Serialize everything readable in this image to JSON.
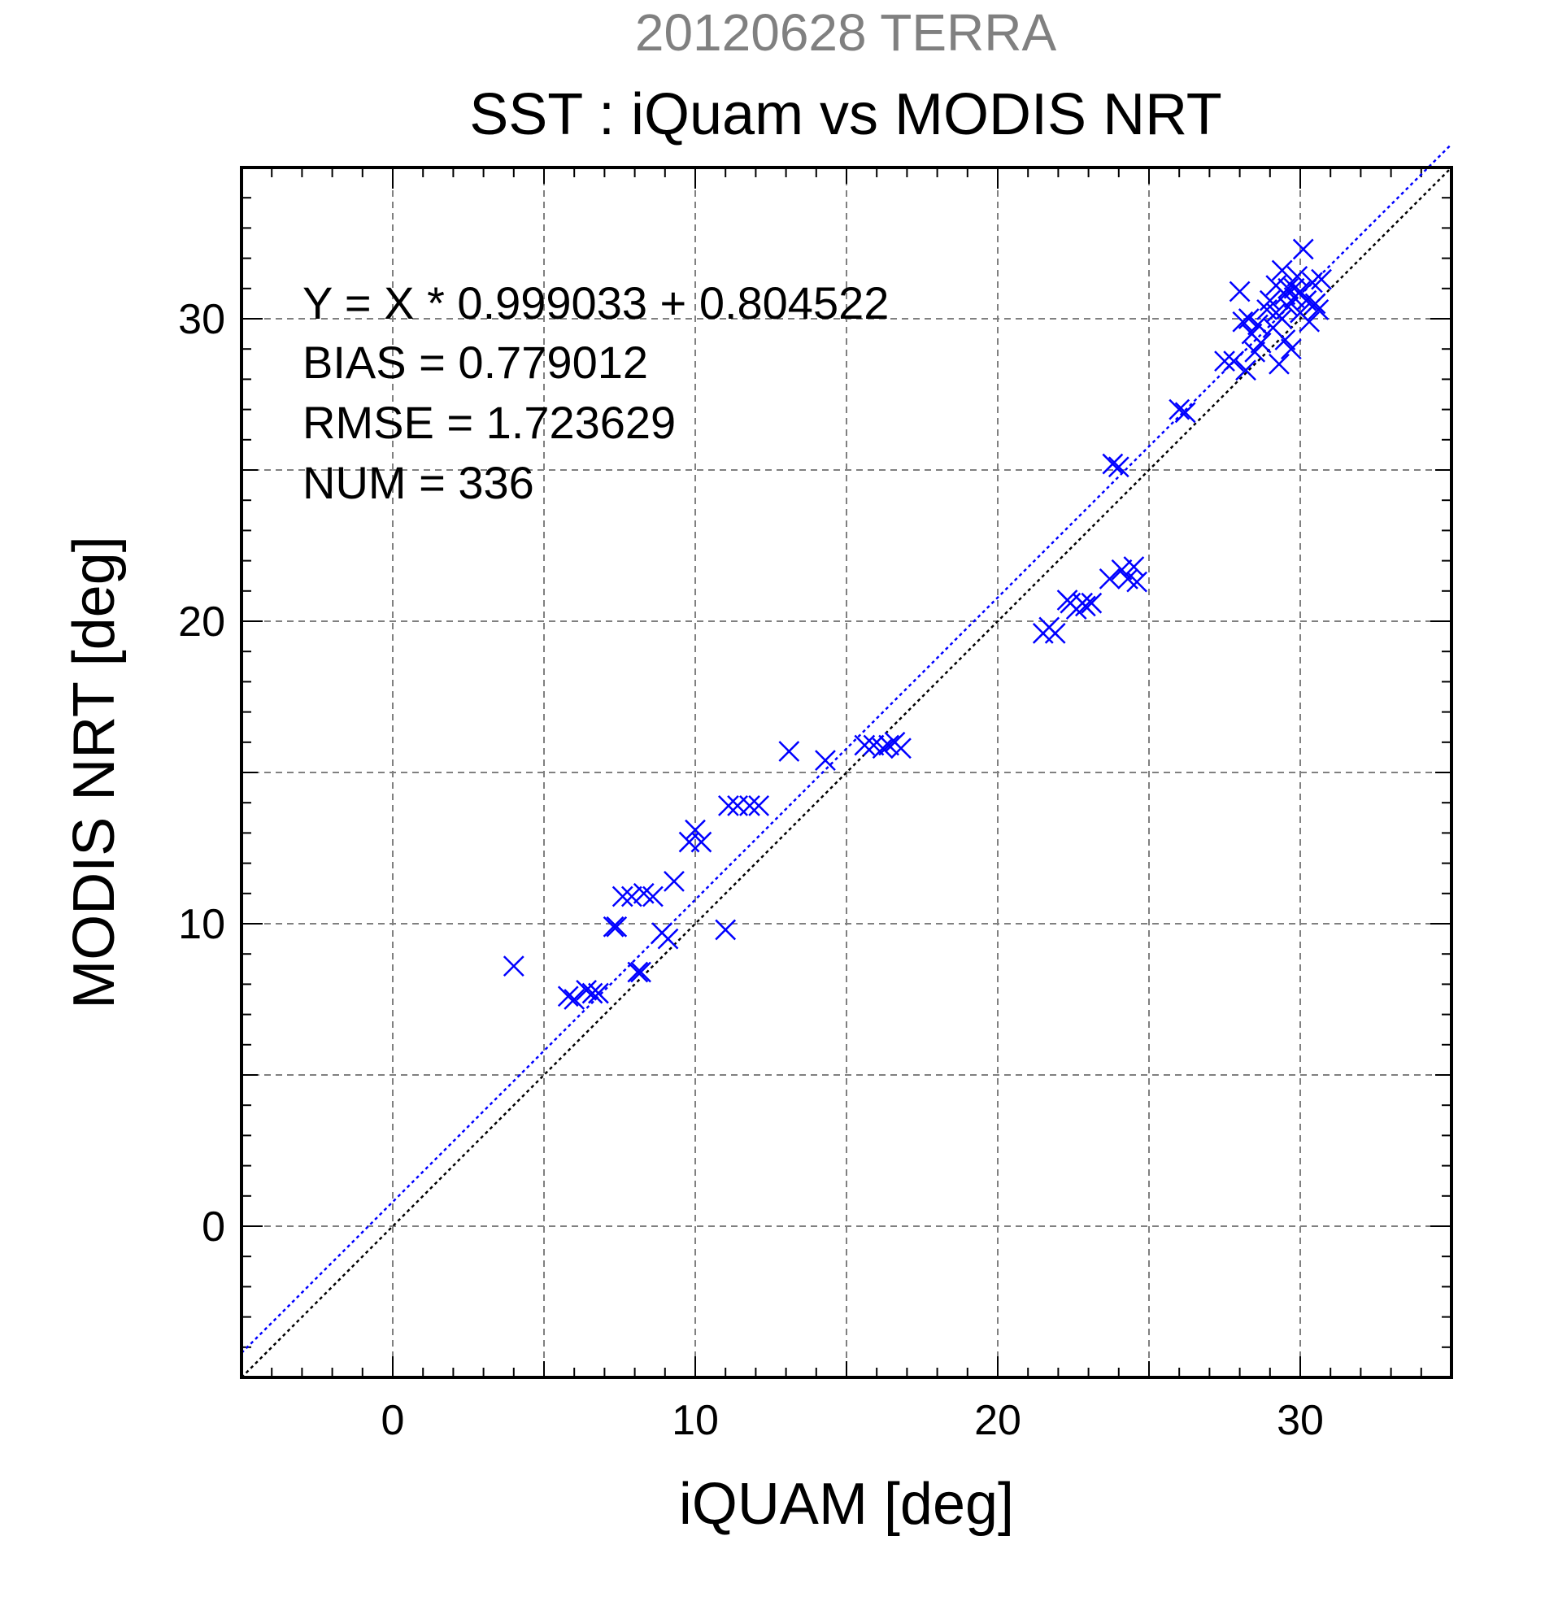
{
  "chart_data": {
    "type": "scatter",
    "supertitle": "20120628 TERRA",
    "title": "SST : iQuam vs MODIS NRT",
    "xlabel": "iQUAM [deg]",
    "ylabel": "MODIS NRT [deg]",
    "xlim": [
      -5,
      35
    ],
    "ylim": [
      -5,
      35
    ],
    "x_ticks": [
      0,
      10,
      20,
      30
    ],
    "y_ticks": [
      0,
      10,
      20,
      30
    ],
    "x_tick_labels": [
      "0",
      "10",
      "20",
      "30"
    ],
    "y_tick_labels": [
      "0",
      "10",
      "20",
      "30"
    ],
    "grid": true,
    "stats": [
      "Y = X * 0.999033 + 0.804522",
      "BIAS = 0.779012",
      "RMSE = 1.723629",
      "NUM = 336"
    ],
    "fit_line": {
      "slope": 0.999033,
      "intercept": 0.804522,
      "color": "#0000ff"
    },
    "identity_line": {
      "slope": 1,
      "intercept": 0,
      "color": "#000000"
    },
    "marker": "x",
    "marker_color": "#0000ff",
    "points": [
      [
        4.0,
        8.6
      ],
      [
        5.8,
        7.6
      ],
      [
        6.0,
        7.5
      ],
      [
        6.4,
        7.8
      ],
      [
        6.6,
        7.7
      ],
      [
        6.8,
        7.7
      ],
      [
        7.3,
        9.9
      ],
      [
        7.4,
        9.9
      ],
      [
        7.6,
        10.9
      ],
      [
        7.9,
        10.9
      ],
      [
        8.1,
        8.4
      ],
      [
        8.2,
        8.4
      ],
      [
        8.3,
        11.0
      ],
      [
        8.6,
        10.9
      ],
      [
        8.9,
        9.7
      ],
      [
        9.1,
        9.5
      ],
      [
        9.3,
        11.4
      ],
      [
        9.8,
        12.7
      ],
      [
        10.0,
        13.1
      ],
      [
        10.2,
        12.7
      ],
      [
        11.0,
        9.8
      ],
      [
        11.1,
        13.9
      ],
      [
        11.4,
        13.9
      ],
      [
        11.8,
        13.9
      ],
      [
        12.1,
        13.9
      ],
      [
        13.1,
        15.7
      ],
      [
        14.3,
        15.4
      ],
      [
        15.6,
        15.9
      ],
      [
        15.9,
        15.9
      ],
      [
        16.2,
        15.8
      ],
      [
        16.4,
        15.9
      ],
      [
        16.6,
        16.0
      ],
      [
        16.8,
        15.8
      ],
      [
        21.5,
        19.6
      ],
      [
        21.7,
        19.8
      ],
      [
        21.9,
        19.6
      ],
      [
        22.3,
        20.7
      ],
      [
        22.4,
        20.6
      ],
      [
        22.6,
        20.4
      ],
      [
        22.8,
        20.6
      ],
      [
        22.9,
        20.5
      ],
      [
        23.1,
        20.6
      ],
      [
        23.7,
        21.4
      ],
      [
        23.8,
        25.2
      ],
      [
        24.0,
        25.1
      ],
      [
        24.1,
        21.7
      ],
      [
        24.3,
        21.4
      ],
      [
        24.5,
        21.8
      ],
      [
        24.6,
        21.3
      ],
      [
        26.0,
        27.0
      ],
      [
        26.2,
        26.9
      ],
      [
        27.5,
        28.6
      ],
      [
        27.8,
        28.6
      ],
      [
        28.0,
        30.9
      ],
      [
        28.1,
        29.9
      ],
      [
        28.2,
        28.3
      ],
      [
        28.3,
        30.0
      ],
      [
        28.4,
        29.5
      ],
      [
        28.5,
        28.9
      ],
      [
        28.6,
        29.8
      ],
      [
        28.7,
        29.2
      ],
      [
        28.9,
        30.3
      ],
      [
        29.0,
        30.6
      ],
      [
        29.1,
        29.7
      ],
      [
        29.2,
        31.1
      ],
      [
        29.3,
        28.5
      ],
      [
        29.4,
        30.0
      ],
      [
        29.4,
        31.6
      ],
      [
        29.5,
        29.3
      ],
      [
        29.6,
        30.4
      ],
      [
        29.6,
        31.0
      ],
      [
        29.7,
        29.0
      ],
      [
        29.8,
        30.7
      ],
      [
        29.9,
        31.4
      ],
      [
        30.0,
        30.2
      ],
      [
        30.0,
        30.9
      ],
      [
        30.1,
        32.3
      ],
      [
        30.2,
        30.6
      ],
      [
        30.3,
        29.9
      ],
      [
        30.4,
        31.2
      ],
      [
        30.5,
        30.5
      ],
      [
        30.7,
        31.3
      ],
      [
        30.6,
        30.3
      ],
      [
        29.5,
        30.8
      ],
      [
        29.8,
        31.0
      ],
      [
        29.2,
        30.2
      ]
    ]
  }
}
